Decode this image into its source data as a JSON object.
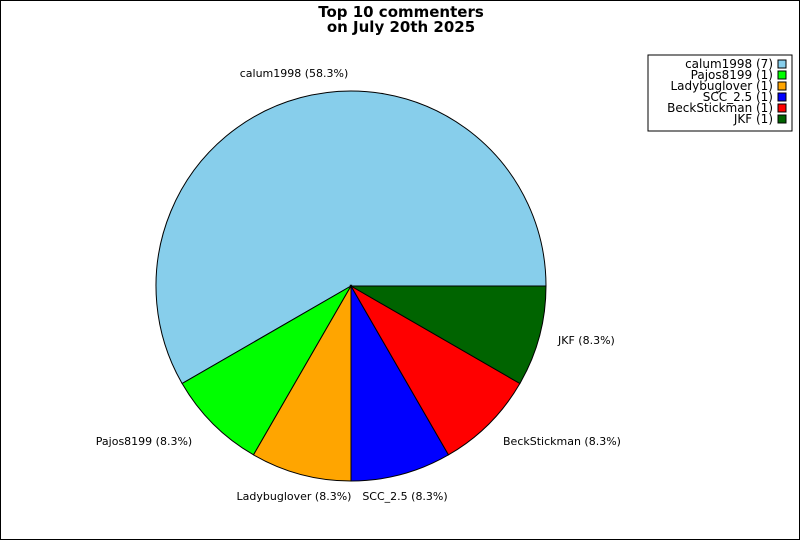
{
  "chart_data": {
    "type": "pie",
    "title": [
      "Top 10 commenters",
      "on July 20th 2025"
    ],
    "slices": [
      {
        "name": "calum1998",
        "count": 7,
        "percent": 58.3,
        "color": "#87CEEB",
        "label": "calum1998 (58.3%)",
        "legend": "calum1998 (7)"
      },
      {
        "name": "Pajos8199",
        "count": 1,
        "percent": 8.3,
        "color": "#00FF00",
        "label": "Pajos8199 (8.3%)",
        "legend": "Pajos8199 (1)"
      },
      {
        "name": "Ladybuglover",
        "count": 1,
        "percent": 8.3,
        "color": "#FFA500",
        "label": "Ladybuglover (8.3%)",
        "legend": "Ladybuglover (1)"
      },
      {
        "name": "SCC_2.5",
        "count": 1,
        "percent": 8.3,
        "color": "#0000FF",
        "label": "SCC_2.5 (8.3%)",
        "legend": "SCC_2.5 (1)"
      },
      {
        "name": "BeckStickman",
        "count": 1,
        "percent": 8.3,
        "color": "#FF0000",
        "label": "BeckStickman (8.3%)",
        "legend": "BeckStickman (1)"
      },
      {
        "name": "JKF",
        "count": 1,
        "percent": 8.3,
        "color": "#006400",
        "label": "JKF (8.3%)",
        "legend": "JKF (1)"
      }
    ],
    "legend_position": "top-right"
  }
}
